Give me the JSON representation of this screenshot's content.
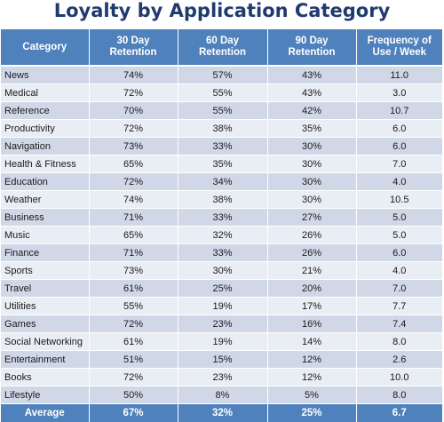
{
  "chart_data": {
    "type": "table",
    "title": "Loyalty by Application Category",
    "columns": [
      "Category",
      "30 Day\nRetention",
      "60 Day\nRetention",
      "90 Day\nRetention",
      "Frequency of\nUse / Week"
    ],
    "rows": [
      [
        "News",
        "74%",
        "57%",
        "43%",
        "11.0"
      ],
      [
        "Medical",
        "72%",
        "55%",
        "43%",
        "3.0"
      ],
      [
        "Reference",
        "70%",
        "55%",
        "42%",
        "10.7"
      ],
      [
        "Productivity",
        "72%",
        "38%",
        "35%",
        "6.0"
      ],
      [
        "Navigation",
        "73%",
        "33%",
        "30%",
        "6.0"
      ],
      [
        "Health & Fitness",
        "65%",
        "35%",
        "30%",
        "7.0"
      ],
      [
        "Education",
        "72%",
        "34%",
        "30%",
        "4.0"
      ],
      [
        "Weather",
        "74%",
        "38%",
        "30%",
        "10.5"
      ],
      [
        "Business",
        "71%",
        "33%",
        "27%",
        "5.0"
      ],
      [
        "Music",
        "65%",
        "32%",
        "26%",
        "5.0"
      ],
      [
        "Finance",
        "71%",
        "33%",
        "26%",
        "6.0"
      ],
      [
        "Sports",
        "73%",
        "30%",
        "21%",
        "4.0"
      ],
      [
        "Travel",
        "61%",
        "25%",
        "20%",
        "7.0"
      ],
      [
        "Utilities",
        "55%",
        "19%",
        "17%",
        "7.7"
      ],
      [
        "Games",
        "72%",
        "23%",
        "16%",
        "7.4"
      ],
      [
        "Social Networking",
        "61%",
        "19%",
        "14%",
        "8.0"
      ],
      [
        "Entertainment",
        "51%",
        "15%",
        "12%",
        "2.6"
      ],
      [
        "Books",
        "72%",
        "23%",
        "12%",
        "10.0"
      ],
      [
        "Lifestyle",
        "50%",
        "8%",
        "5%",
        "8.0"
      ]
    ],
    "footer": [
      "Average",
      "67%",
      "32%",
      "25%",
      "6.7"
    ]
  },
  "colors": {
    "title": "#1f3b6e",
    "header_bg": "#4f81bd",
    "row_odd": "#d0d8e8",
    "row_even": "#e9edf4"
  }
}
